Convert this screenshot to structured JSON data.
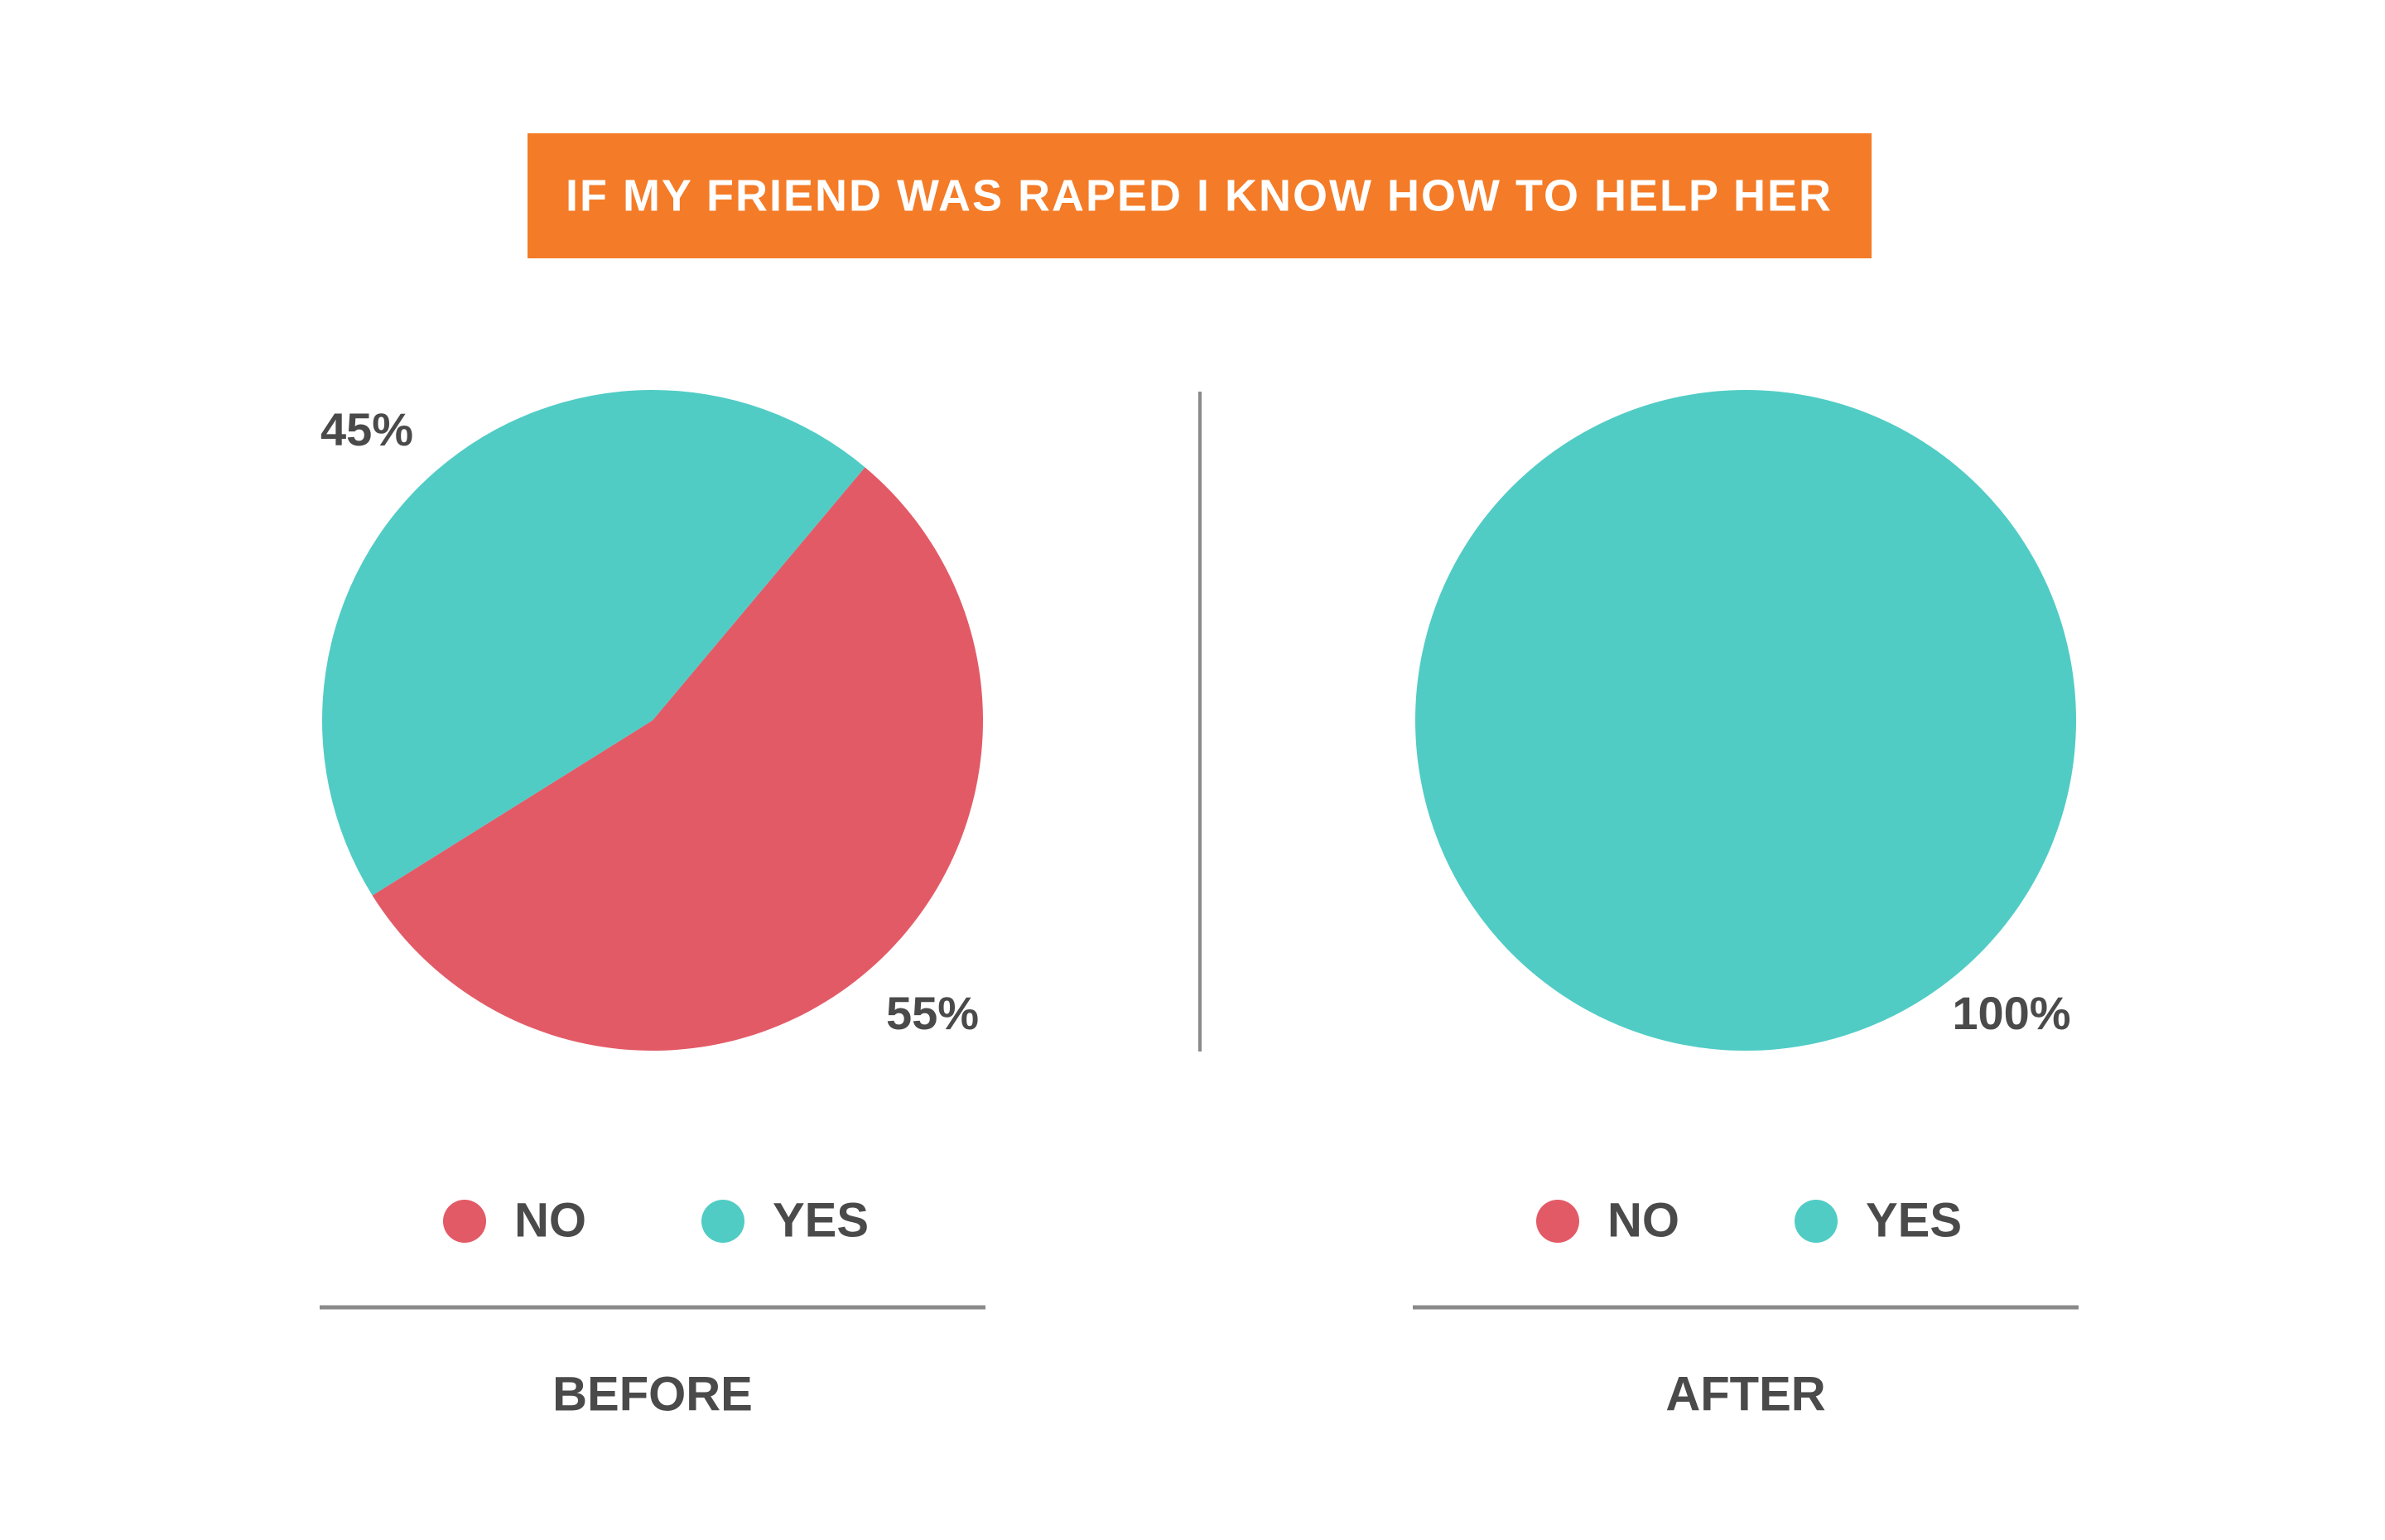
{
  "title": "IF MY FRIEND WAS RAPED I KNOW HOW TO HELP HER",
  "chart_data": [
    {
      "type": "pie",
      "label": "BEFORE",
      "categories": [
        "NO",
        "YES"
      ],
      "values": [
        55,
        45
      ],
      "value_labels": [
        "55%",
        "45%"
      ],
      "colors": [
        "#e35a67",
        "#50ccc5"
      ]
    },
    {
      "type": "pie",
      "label": "AFTER",
      "categories": [
        "NO",
        "YES"
      ],
      "values": [
        0,
        100
      ],
      "value_labels": [
        null,
        "100%"
      ],
      "colors": [
        "#e35a67",
        "#50ccc5"
      ]
    }
  ]
}
